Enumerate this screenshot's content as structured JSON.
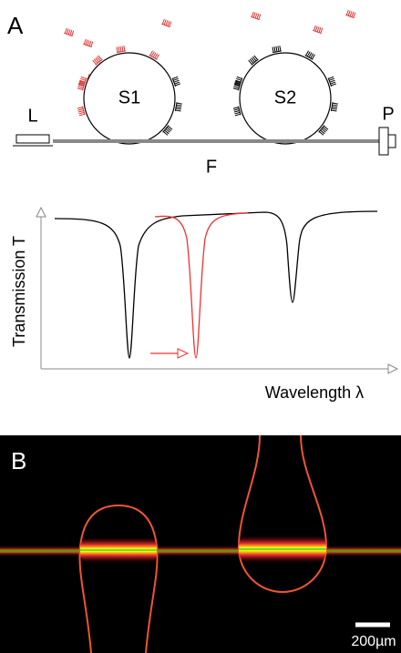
{
  "panel_a": {
    "label": "A",
    "laser": "L",
    "sphere_1": "S1",
    "sphere_2": "S2",
    "photodetector": "P",
    "fiber": "F",
    "y_axis_label": "Transmission T",
    "x_axis_label": "Wavelength λ"
  },
  "panel_b": {
    "label": "B",
    "scale_bar": "200µm"
  }
}
